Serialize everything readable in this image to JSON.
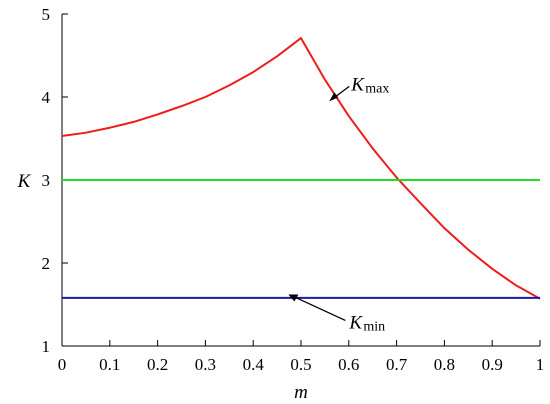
{
  "chart_data": {
    "type": "line",
    "xlabel": "m",
    "ylabel": "K",
    "xlim": [
      0,
      1
    ],
    "ylim": [
      1,
      5
    ],
    "grid": false,
    "x_ticks": [
      "0",
      "0.1",
      "0.2",
      "0.3",
      "0.4",
      "0.5",
      "0.6",
      "0.7",
      "0.8",
      "0.9",
      "1"
    ],
    "y_ticks": [
      "1",
      "2",
      "3",
      "4",
      "5"
    ],
    "series": [
      {
        "color": "#ee1c1c",
        "x": [
          0,
          0.05,
          0.1,
          0.15,
          0.2,
          0.25,
          0.3,
          0.35,
          0.4,
          0.45,
          0.5,
          0.55,
          0.6,
          0.65,
          0.7,
          0.75,
          0.8,
          0.85,
          0.9,
          0.95,
          1.0
        ],
        "y": [
          3.53,
          3.57,
          3.63,
          3.7,
          3.79,
          3.89,
          4.0,
          4.14,
          4.3,
          4.49,
          4.71,
          4.21,
          3.77,
          3.38,
          3.03,
          2.72,
          2.42,
          2.16,
          1.93,
          1.73,
          1.57
        ]
      },
      {
        "color": "#22dd22",
        "x": [
          0,
          1
        ],
        "y": [
          3.0,
          3.0
        ]
      },
      {
        "color": "#1a1aa8",
        "x": [
          0,
          1
        ],
        "y": [
          1.58,
          1.58
        ]
      }
    ],
    "annotations": [
      {
        "main": "K",
        "sub": "max",
        "x": 0.58,
        "y": 4.08
      },
      {
        "main": "K",
        "sub": "min",
        "x": 0.53,
        "y": 1.38
      }
    ]
  }
}
